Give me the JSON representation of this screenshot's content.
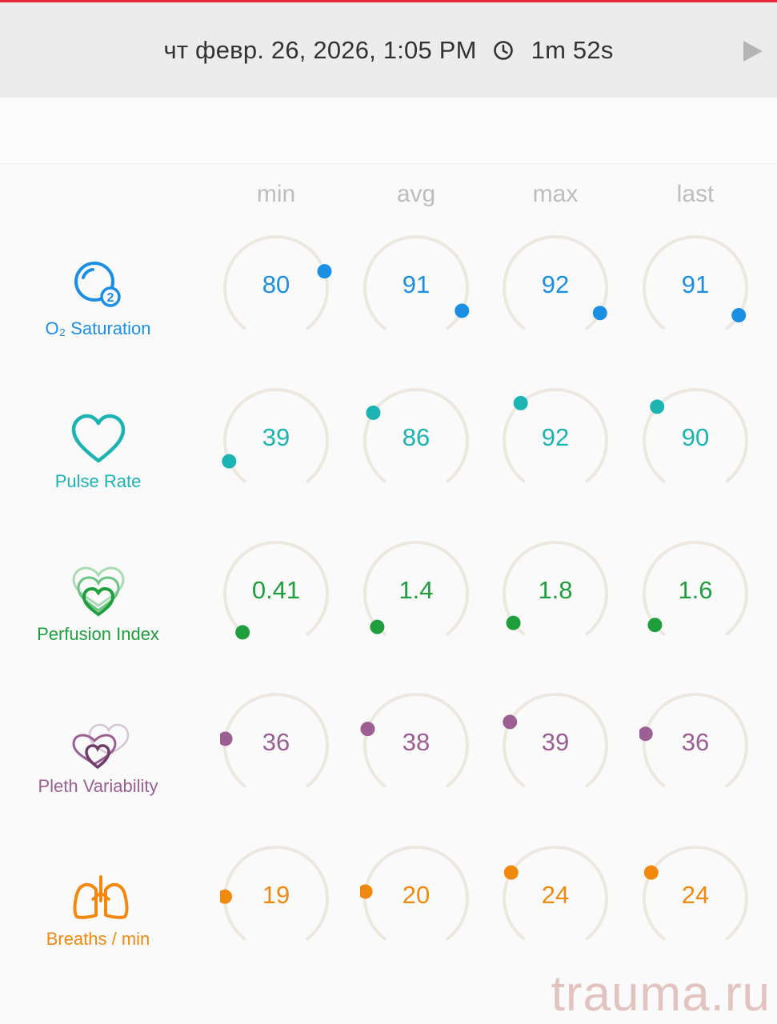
{
  "header": {
    "datetime": "чт февр. 26, 2026, 1:05 PM",
    "duration": "1m 52s",
    "duration_icon": "clock-icon",
    "play_icon": "play-icon"
  },
  "columns": [
    "min",
    "avg",
    "max",
    "last"
  ],
  "metrics": [
    {
      "id": "o2",
      "label": "O₂ Saturation",
      "icon": "o2-saturation-icon",
      "color": "#1a8fe3",
      "values": [
        "80",
        "91",
        "92",
        "91"
      ],
      "levels": [
        0.75,
        0.91,
        0.92,
        0.93
      ]
    },
    {
      "id": "pulse",
      "label": "Pulse Rate",
      "icon": "heart-icon",
      "color": "#1cb3b3",
      "values": [
        "39",
        "86",
        "92",
        "90"
      ],
      "levels": [
        0.1,
        0.3,
        0.35,
        0.33
      ]
    },
    {
      "id": "perfusion",
      "label": "Perfusion Index",
      "icon": "perfusion-index-icon",
      "color": "#1e9e3c",
      "values": [
        "0.41",
        "1.4",
        "1.8",
        "1.6"
      ],
      "levels": [
        0.01,
        0.04,
        0.06,
        0.05
      ]
    },
    {
      "id": "pleth",
      "label": "Pleth Variability",
      "icon": "pleth-variability-icon",
      "color": "#9b5f93",
      "values": [
        "36",
        "38",
        "39",
        "36"
      ],
      "levels": [
        0.21,
        0.25,
        0.28,
        0.23
      ]
    },
    {
      "id": "breaths",
      "label": "Breaths / min",
      "icon": "lungs-icon",
      "color": "#f2890f",
      "values": [
        "19",
        "20",
        "24",
        "24"
      ],
      "levels": [
        0.19,
        0.21,
        0.29,
        0.29
      ]
    }
  ],
  "watermark": "trauma.ru"
}
